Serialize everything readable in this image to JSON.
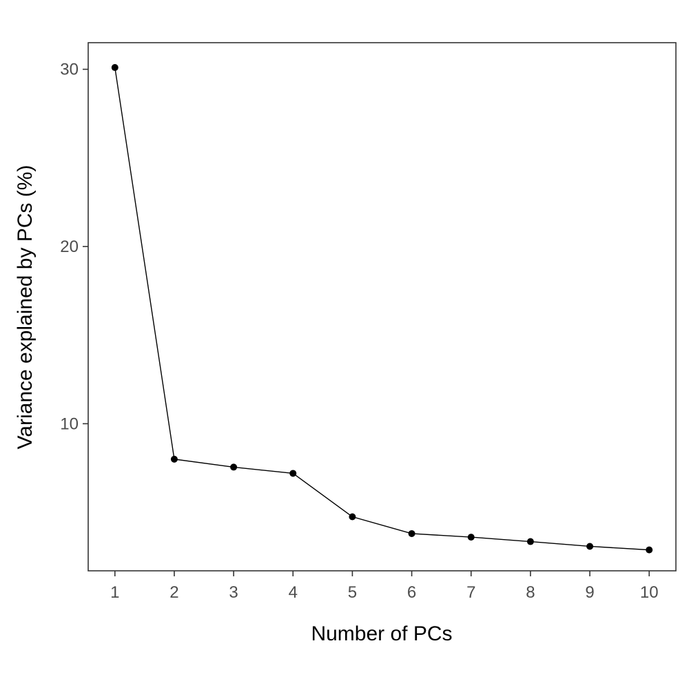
{
  "chart_data": {
    "type": "line",
    "title": "",
    "xlabel": "Number of PCs",
    "ylabel": "Variance explained by PCs (%)",
    "x": [
      1,
      2,
      3,
      4,
      5,
      6,
      7,
      8,
      9,
      10
    ],
    "series": [
      {
        "values": [
          30.1,
          8.0,
          7.55,
          7.2,
          4.75,
          3.8,
          3.6,
          3.35,
          3.08,
          2.88
        ]
      }
    ],
    "xlim": [
      0.55,
      10.45
    ],
    "ylim": [
      1.7,
      31.5
    ],
    "xticks": [
      1,
      2,
      3,
      4,
      5,
      6,
      7,
      8,
      9,
      10
    ],
    "yticks": [
      10,
      20,
      30
    ],
    "grid": false,
    "legend": "none",
    "colors": {
      "line": "#000000",
      "point": "#000000",
      "panel_border": "#333333",
      "tick_text": "#4d4d4d",
      "axis_title": "#000000",
      "background": "#ffffff"
    }
  }
}
